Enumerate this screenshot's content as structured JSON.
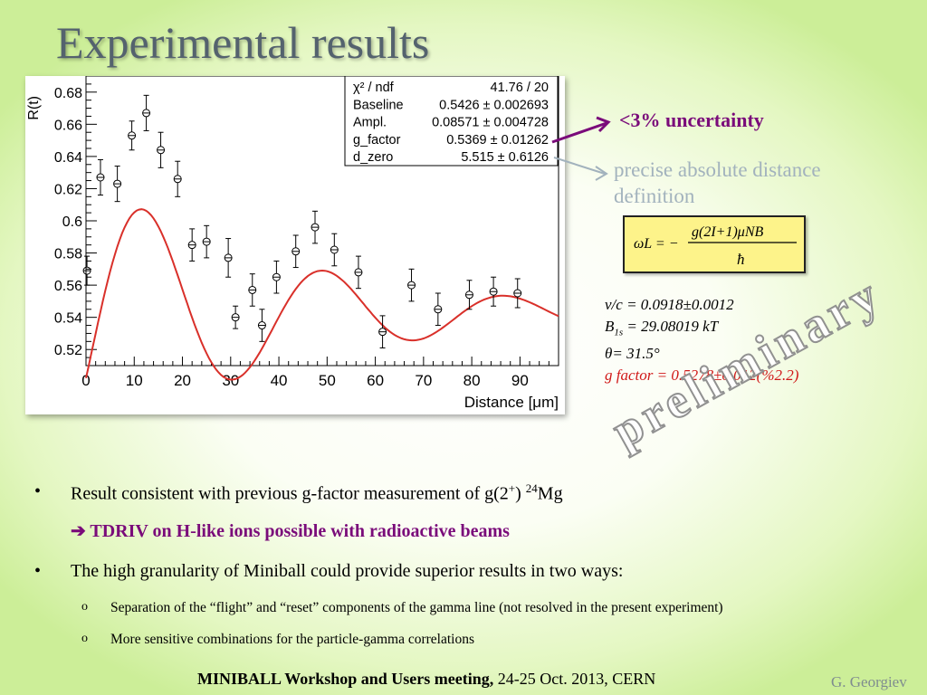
{
  "slide": {
    "title": "Experimental results",
    "uncertainty_note": "<3% uncertainty",
    "distance_note": "precise absolute distance definition",
    "formula": {
      "lhs": "ωL = −",
      "numerator": "g(2I+1)μNB",
      "denominator": "ħ"
    },
    "params": {
      "vc": "v/c = 0.0918±0.0012",
      "b_prefix": "B",
      "b_sub": "1s",
      "b_value": " = 29.08019 kT",
      "theta": "θ= 31.5°",
      "gfactor": "g factor = 0.5278±0.012(%2.2)"
    },
    "watermark": "preliminary",
    "bullets": {
      "b1_text": "Result consistent with previous g-factor measurement of g(2",
      "b1_sup1": "+",
      "b1_mid": ") ",
      "b1_sup2": "24",
      "b1_end": "Mg",
      "b2_text": "➔ TDRIV on H-like ions possible with radioactive beams",
      "b3_text": "The high granularity of Miniball could provide superior results in two ways:",
      "sub1": "Separation of the “flight” and “reset” components of the gamma line (not resolved in the present experiment)",
      "sub2": "More sensitive combinations for the particle-gamma correlations",
      "bullet_char": "•",
      "sub_char": "o"
    },
    "footer": {
      "bold": "MINIBALL Workshop and Users meeting,",
      "rest": " 24-25 Oct. 2013, CERN"
    },
    "author": "G. Georgiev"
  },
  "chart_data": {
    "type": "scatter",
    "xlabel": "Distance [μm]",
    "ylabel": "R(t)",
    "xlim": [
      0,
      98
    ],
    "ylim": [
      0.51,
      0.69
    ],
    "xticks": [
      0,
      10,
      20,
      30,
      40,
      50,
      60,
      70,
      80,
      90
    ],
    "yticks": [
      0.52,
      0.54,
      0.56,
      0.58,
      0.6,
      0.62,
      0.64,
      0.66,
      0.68
    ],
    "ytick_labels": [
      "0.52",
      "0.54",
      "0.56",
      "0.58",
      "0.6",
      "0.62",
      "0.64",
      "0.66",
      "0.68"
    ],
    "points": [
      {
        "x": 0.2,
        "y": 0.569,
        "err": 0.009
      },
      {
        "x": 3.0,
        "y": 0.627,
        "err": 0.011
      },
      {
        "x": 6.5,
        "y": 0.623,
        "err": 0.011
      },
      {
        "x": 9.5,
        "y": 0.653,
        "err": 0.009
      },
      {
        "x": 12.5,
        "y": 0.667,
        "err": 0.011
      },
      {
        "x": 15.5,
        "y": 0.644,
        "err": 0.011
      },
      {
        "x": 19.0,
        "y": 0.626,
        "err": 0.011
      },
      {
        "x": 22.0,
        "y": 0.585,
        "err": 0.01
      },
      {
        "x": 25.0,
        "y": 0.587,
        "err": 0.01
      },
      {
        "x": 29.5,
        "y": 0.577,
        "err": 0.012
      },
      {
        "x": 31.0,
        "y": 0.54,
        "err": 0.007
      },
      {
        "x": 34.5,
        "y": 0.557,
        "err": 0.01
      },
      {
        "x": 36.5,
        "y": 0.535,
        "err": 0.01
      },
      {
        "x": 39.5,
        "y": 0.565,
        "err": 0.01
      },
      {
        "x": 43.5,
        "y": 0.581,
        "err": 0.01
      },
      {
        "x": 47.5,
        "y": 0.596,
        "err": 0.01
      },
      {
        "x": 51.5,
        "y": 0.582,
        "err": 0.01
      },
      {
        "x": 56.5,
        "y": 0.568,
        "err": 0.01
      },
      {
        "x": 61.5,
        "y": 0.531,
        "err": 0.01
      },
      {
        "x": 67.5,
        "y": 0.56,
        "err": 0.01
      },
      {
        "x": 73.0,
        "y": 0.545,
        "err": 0.01
      },
      {
        "x": 79.5,
        "y": 0.554,
        "err": 0.009
      },
      {
        "x": 84.5,
        "y": 0.556,
        "err": 0.009
      },
      {
        "x": 89.5,
        "y": 0.555,
        "err": 0.009
      }
    ],
    "fit_params": {
      "baseline": 0.5426,
      "ampl": 0.08571,
      "g_factor": 0.5369,
      "d_zero": 5.515
    },
    "fit_color": "#d9302a",
    "stats_box": [
      {
        "label": "χ² / ndf",
        "value": "41.76 / 20"
      },
      {
        "label": "Baseline",
        "value": "0.5426 ± 0.002693"
      },
      {
        "label": "Ampl.",
        "value": "0.08571 ± 0.004728"
      },
      {
        "label": "g_factor",
        "value": "0.5369 ± 0.01262"
      },
      {
        "label": "d_zero",
        "value": "5.515 ± 0.6126"
      }
    ]
  }
}
